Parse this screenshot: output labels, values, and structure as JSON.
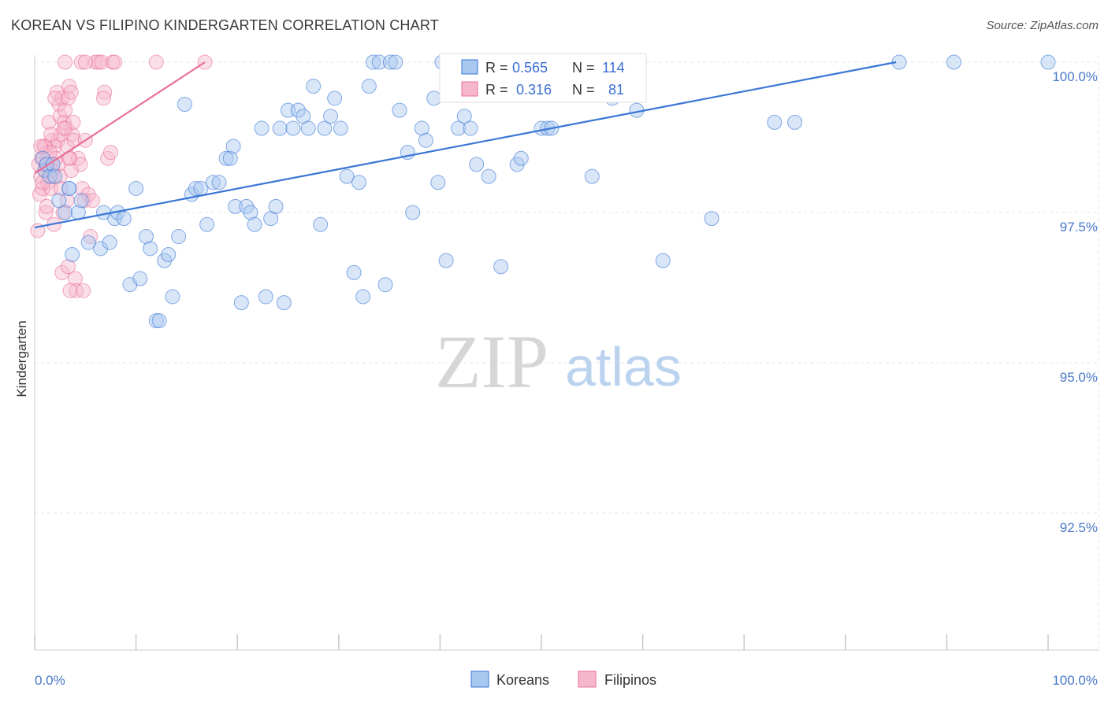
{
  "title": "KOREAN VS FILIPINO KINDERGARTEN CORRELATION CHART",
  "source": "Source: ZipAtlas.com",
  "watermark": {
    "zip": "ZIP",
    "atlas": "atlas"
  },
  "colors": {
    "blue": "#3a76d6",
    "blue_fill": "#a9c8f0",
    "pink": "#e8709a",
    "pink_fill": "#f6b7cc",
    "grid": "#e6e6e6",
    "tick_label": "#4a78c8"
  },
  "legend": {
    "rows": [
      {
        "r_label": "R =",
        "r_value": "0.565",
        "n_label": "N =",
        "n_value": "114"
      },
      {
        "r_label": "R =",
        "r_value": "0.316",
        "n_label": "N =",
        "n_value": "81"
      }
    ]
  },
  "bottom_legend": {
    "items": [
      "Koreans",
      "Filipinos"
    ]
  },
  "chart_data": {
    "type": "scatter",
    "title": "KOREAN VS FILIPINO KINDERGARTEN CORRELATION CHART",
    "xlabel": "",
    "ylabel": "Kindergarten",
    "xlim": [
      0,
      100
    ],
    "ylim": [
      90.3,
      100.5
    ],
    "x_tick_labels": [
      "0.0%",
      "100.0%"
    ],
    "y_ticks": [
      92.5,
      95.0,
      97.5,
      100.0
    ],
    "y_tick_labels": [
      "92.5%",
      "95.0%",
      "97.5%",
      "100.0%"
    ],
    "grid": true,
    "series": [
      {
        "name": "Koreans",
        "r": 0.565,
        "n": 114,
        "trend": {
          "x": [
            0,
            85
          ],
          "y": [
            97.25,
            100.0
          ]
        },
        "points": [
          [
            0.8,
            98.4
          ],
          [
            1.0,
            98.2
          ],
          [
            1.2,
            98.3
          ],
          [
            1.5,
            98.1
          ],
          [
            1.8,
            98.3
          ],
          [
            2.0,
            98.1
          ],
          [
            2.4,
            97.7
          ],
          [
            3.0,
            97.5
          ],
          [
            3.4,
            97.9
          ],
          [
            3.7,
            96.8
          ],
          [
            4.3,
            97.5
          ],
          [
            4.6,
            97.7
          ],
          [
            5.3,
            97.0
          ],
          [
            6.5,
            96.9
          ],
          [
            6.8,
            97.5
          ],
          [
            7.4,
            97.0
          ],
          [
            7.9,
            97.4
          ],
          [
            8.2,
            97.5
          ],
          [
            8.8,
            97.4
          ],
          [
            9.4,
            96.3
          ],
          [
            10.0,
            97.9
          ],
          [
            10.4,
            96.4
          ],
          [
            11.0,
            97.1
          ],
          [
            11.4,
            96.9
          ],
          [
            12.0,
            95.7
          ],
          [
            12.3,
            95.7
          ],
          [
            12.8,
            96.7
          ],
          [
            13.2,
            96.8
          ],
          [
            13.6,
            96.1
          ],
          [
            14.2,
            97.1
          ],
          [
            14.8,
            99.3
          ],
          [
            15.5,
            97.8
          ],
          [
            15.9,
            97.9
          ],
          [
            16.4,
            97.9
          ],
          [
            17.0,
            97.3
          ],
          [
            17.6,
            98.0
          ],
          [
            18.2,
            98.0
          ],
          [
            18.9,
            98.4
          ],
          [
            19.3,
            98.4
          ],
          [
            19.6,
            98.6
          ],
          [
            19.8,
            97.6
          ],
          [
            20.4,
            96.0
          ],
          [
            20.9,
            97.6
          ],
          [
            21.3,
            97.5
          ],
          [
            21.7,
            97.3
          ],
          [
            22.4,
            98.9
          ],
          [
            22.8,
            96.1
          ],
          [
            23.3,
            97.4
          ],
          [
            23.8,
            97.6
          ],
          [
            24.2,
            98.9
          ],
          [
            24.6,
            96.0
          ],
          [
            25.0,
            99.2
          ],
          [
            25.5,
            98.9
          ],
          [
            26.0,
            99.2
          ],
          [
            26.5,
            99.1
          ],
          [
            27.0,
            98.9
          ],
          [
            27.5,
            99.6
          ],
          [
            28.2,
            97.3
          ],
          [
            28.6,
            98.9
          ],
          [
            29.2,
            99.1
          ],
          [
            29.6,
            99.4
          ],
          [
            30.2,
            98.9
          ],
          [
            30.8,
            98.1
          ],
          [
            31.5,
            96.5
          ],
          [
            32.0,
            98.0
          ],
          [
            32.4,
            96.1
          ],
          [
            33.0,
            99.6
          ],
          [
            33.4,
            100.0
          ],
          [
            34.0,
            100.0
          ],
          [
            34.6,
            96.3
          ],
          [
            35.1,
            100.0
          ],
          [
            35.6,
            100.0
          ],
          [
            36.0,
            99.2
          ],
          [
            36.8,
            98.5
          ],
          [
            37.3,
            97.5
          ],
          [
            38.2,
            98.9
          ],
          [
            38.6,
            98.7
          ],
          [
            39.4,
            99.4
          ],
          [
            39.8,
            98.0
          ],
          [
            40.2,
            100.0
          ],
          [
            40.6,
            96.7
          ],
          [
            41.3,
            100.0
          ],
          [
            41.8,
            98.9
          ],
          [
            42.4,
            99.1
          ],
          [
            43.0,
            98.9
          ],
          [
            43.6,
            98.3
          ],
          [
            44.2,
            100.0
          ],
          [
            44.8,
            98.1
          ],
          [
            45.3,
            100.0
          ],
          [
            46.0,
            96.6
          ],
          [
            46.6,
            100.0
          ],
          [
            47.6,
            98.3
          ],
          [
            48.0,
            98.4
          ],
          [
            49.2,
            100.0
          ],
          [
            50.0,
            98.9
          ],
          [
            50.6,
            98.9
          ],
          [
            51.0,
            98.9
          ],
          [
            52.4,
            100.0
          ],
          [
            53.1,
            99.6
          ],
          [
            53.8,
            100.0
          ],
          [
            55.0,
            98.1
          ],
          [
            56.4,
            99.6
          ],
          [
            57.0,
            99.4
          ],
          [
            57.6,
            100.0
          ],
          [
            58.8,
            99.6
          ],
          [
            59.4,
            99.2
          ],
          [
            62.0,
            96.7
          ],
          [
            66.8,
            97.4
          ],
          [
            73.0,
            99.0
          ],
          [
            75.0,
            99.0
          ],
          [
            85.3,
            100.0
          ],
          [
            90.7,
            100.0
          ],
          [
            100.0,
            100.0
          ],
          [
            3.4,
            97.9
          ]
        ]
      },
      {
        "name": "Filipinos",
        "r": 0.316,
        "n": 81,
        "trend": {
          "x": [
            0,
            16.8
          ],
          "y": [
            98.15,
            100.0
          ]
        },
        "points": [
          [
            0.3,
            97.2
          ],
          [
            0.5,
            97.8
          ],
          [
            0.6,
            98.1
          ],
          [
            0.7,
            98.4
          ],
          [
            0.8,
            97.9
          ],
          [
            0.9,
            98.6
          ],
          [
            1.0,
            98.2
          ],
          [
            1.1,
            97.5
          ],
          [
            1.2,
            98.5
          ],
          [
            1.3,
            98.0
          ],
          [
            1.4,
            99.0
          ],
          [
            1.5,
            98.3
          ],
          [
            1.6,
            97.9
          ],
          [
            1.7,
            98.7
          ],
          [
            1.8,
            98.2
          ],
          [
            1.9,
            97.3
          ],
          [
            2.0,
            98.6
          ],
          [
            2.1,
            98.4
          ],
          [
            2.2,
            99.5
          ],
          [
            2.3,
            98.7
          ],
          [
            2.4,
            99.3
          ],
          [
            2.5,
            99.1
          ],
          [
            2.6,
            98.8
          ],
          [
            2.7,
            99.4
          ],
          [
            2.8,
            97.5
          ],
          [
            2.9,
            99.0
          ],
          [
            3.0,
            99.2
          ],
          [
            3.1,
            98.9
          ],
          [
            3.2,
            98.6
          ],
          [
            3.3,
            99.4
          ],
          [
            3.4,
            99.6
          ],
          [
            3.5,
            98.4
          ],
          [
            3.6,
            99.5
          ],
          [
            3.7,
            98.8
          ],
          [
            3.8,
            99.0
          ],
          [
            3.9,
            98.7
          ],
          [
            4.0,
            96.4
          ],
          [
            4.1,
            96.2
          ],
          [
            4.3,
            98.4
          ],
          [
            4.5,
            98.3
          ],
          [
            4.7,
            97.9
          ],
          [
            4.9,
            97.7
          ],
          [
            5.0,
            98.7
          ],
          [
            5.3,
            97.8
          ],
          [
            5.5,
            97.1
          ],
          [
            5.7,
            97.7
          ],
          [
            6.0,
            100.0
          ],
          [
            6.3,
            100.0
          ],
          [
            6.6,
            100.0
          ],
          [
            6.9,
            99.5
          ],
          [
            7.2,
            98.4
          ],
          [
            7.5,
            98.5
          ],
          [
            7.7,
            100.0
          ],
          [
            7.9,
            100.0
          ],
          [
            2.7,
            96.5
          ],
          [
            3.5,
            96.2
          ],
          [
            3.3,
            96.6
          ],
          [
            4.8,
            96.2
          ],
          [
            1.0,
            98.6
          ],
          [
            1.5,
            98.5
          ],
          [
            0.4,
            98.3
          ],
          [
            0.8,
            98.0
          ],
          [
            1.2,
            97.6
          ],
          [
            1.8,
            98.1
          ],
          [
            2.3,
            98.3
          ],
          [
            2.9,
            98.9
          ],
          [
            3.2,
            97.7
          ],
          [
            3.6,
            98.2
          ],
          [
            0.6,
            98.6
          ],
          [
            1.1,
            98.3
          ],
          [
            2.0,
            99.4
          ],
          [
            2.5,
            98.1
          ],
          [
            1.6,
            98.8
          ],
          [
            2.6,
            97.9
          ],
          [
            3.4,
            98.4
          ],
          [
            6.8,
            99.4
          ],
          [
            4.6,
            100.0
          ],
          [
            5.0,
            100.0
          ],
          [
            3.0,
            100.0
          ],
          [
            12.0,
            100.0
          ],
          [
            16.8,
            100.0
          ]
        ]
      }
    ]
  }
}
